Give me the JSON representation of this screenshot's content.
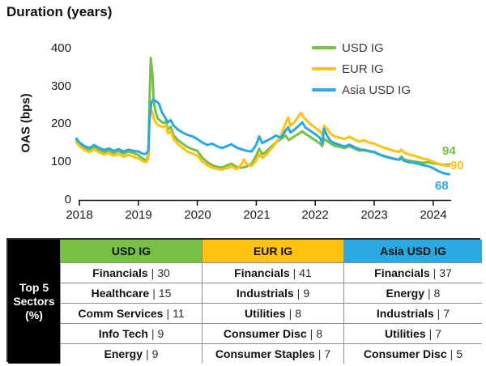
{
  "title": "Duration (years)",
  "chart_data": {
    "type": "line",
    "title": "Duration (years)",
    "ylabel": "OAS (bps)",
    "ylim": [
      0,
      400
    ],
    "y_tick_values": [
      0,
      100,
      200,
      300,
      400
    ],
    "x_tick_values": [
      2018,
      2019,
      2020,
      2021,
      2022,
      2023,
      2024
    ],
    "grid": false,
    "legend_position": "top-right",
    "series": [
      {
        "name": "USD IG",
        "color": "#76C043",
        "end_label": 94,
        "points": [
          [
            2017.95,
            158
          ],
          [
            2018.0,
            148
          ],
          [
            2018.08,
            138
          ],
          [
            2018.17,
            132
          ],
          [
            2018.25,
            141
          ],
          [
            2018.33,
            133
          ],
          [
            2018.42,
            126
          ],
          [
            2018.5,
            131
          ],
          [
            2018.58,
            124
          ],
          [
            2018.67,
            129
          ],
          [
            2018.75,
            122
          ],
          [
            2018.83,
            128
          ],
          [
            2018.92,
            124
          ],
          [
            2019.0,
            119
          ],
          [
            2019.05,
            112
          ],
          [
            2019.1,
            107
          ],
          [
            2019.14,
            105
          ],
          [
            2019.17,
            118
          ],
          [
            2019.19,
            260
          ],
          [
            2019.21,
            375
          ],
          [
            2019.24,
            330
          ],
          [
            2019.26,
            262
          ],
          [
            2019.29,
            235
          ],
          [
            2019.33,
            215
          ],
          [
            2019.42,
            203
          ],
          [
            2019.47,
            207
          ],
          [
            2019.5,
            186
          ],
          [
            2019.55,
            193
          ],
          [
            2019.6,
            170
          ],
          [
            2019.67,
            158
          ],
          [
            2019.75,
            149
          ],
          [
            2019.83,
            140
          ],
          [
            2019.92,
            134
          ],
          [
            2020.0,
            130
          ],
          [
            2020.08,
            112
          ],
          [
            2020.17,
            100
          ],
          [
            2020.25,
            92
          ],
          [
            2020.33,
            88
          ],
          [
            2020.42,
            86
          ],
          [
            2020.5,
            91
          ],
          [
            2020.58,
            96
          ],
          [
            2020.67,
            87
          ],
          [
            2020.75,
            85
          ],
          [
            2020.83,
            88
          ],
          [
            2020.92,
            96
          ],
          [
            2021.0,
            118
          ],
          [
            2021.05,
            136
          ],
          [
            2021.1,
            121
          ],
          [
            2021.17,
            128
          ],
          [
            2021.25,
            140
          ],
          [
            2021.33,
            152
          ],
          [
            2021.42,
            161
          ],
          [
            2021.5,
            170
          ],
          [
            2021.55,
            158
          ],
          [
            2021.63,
            166
          ],
          [
            2021.7,
            173
          ],
          [
            2021.78,
            181
          ],
          [
            2021.83,
            175
          ],
          [
            2021.92,
            166
          ],
          [
            2022.0,
            158
          ],
          [
            2022.08,
            149
          ],
          [
            2022.12,
            142
          ],
          [
            2022.15,
            162
          ],
          [
            2022.2,
            156
          ],
          [
            2022.25,
            150
          ],
          [
            2022.33,
            143
          ],
          [
            2022.42,
            140
          ],
          [
            2022.5,
            137
          ],
          [
            2022.58,
            142
          ],
          [
            2022.67,
            135
          ],
          [
            2022.75,
            130
          ],
          [
            2022.83,
            133
          ],
          [
            2022.92,
            128
          ],
          [
            2023.0,
            126
          ],
          [
            2023.08,
            120
          ],
          [
            2023.17,
            115
          ],
          [
            2023.25,
            112
          ],
          [
            2023.33,
            109
          ],
          [
            2023.42,
            107
          ],
          [
            2023.46,
            115
          ],
          [
            2023.5,
            108
          ],
          [
            2023.58,
            104
          ],
          [
            2023.67,
            102
          ],
          [
            2023.75,
            100
          ],
          [
            2023.83,
            98
          ],
          [
            2023.92,
            100
          ],
          [
            2024.0,
            97
          ],
          [
            2024.08,
            95
          ],
          [
            2024.17,
            93
          ],
          [
            2024.27,
            94
          ]
        ]
      },
      {
        "name": "EUR IG",
        "color": "#FFC20E",
        "end_label": 90,
        "points": [
          [
            2017.95,
            152
          ],
          [
            2018.0,
            143
          ],
          [
            2018.08,
            133
          ],
          [
            2018.17,
            126
          ],
          [
            2018.25,
            134
          ],
          [
            2018.33,
            126
          ],
          [
            2018.42,
            120
          ],
          [
            2018.5,
            124
          ],
          [
            2018.58,
            117
          ],
          [
            2018.67,
            121
          ],
          [
            2018.75,
            114
          ],
          [
            2018.83,
            119
          ],
          [
            2018.92,
            114
          ],
          [
            2019.0,
            110
          ],
          [
            2019.05,
            105
          ],
          [
            2019.1,
            101
          ],
          [
            2019.14,
            100
          ],
          [
            2019.17,
            112
          ],
          [
            2019.19,
            210
          ],
          [
            2019.21,
            240
          ],
          [
            2019.24,
            231
          ],
          [
            2019.26,
            216
          ],
          [
            2019.29,
            206
          ],
          [
            2019.33,
            198
          ],
          [
            2019.42,
            192
          ],
          [
            2019.47,
            197
          ],
          [
            2019.5,
            176
          ],
          [
            2019.55,
            181
          ],
          [
            2019.6,
            160
          ],
          [
            2019.67,
            148
          ],
          [
            2019.75,
            138
          ],
          [
            2019.83,
            128
          ],
          [
            2019.92,
            122
          ],
          [
            2020.0,
            117
          ],
          [
            2020.08,
            102
          ],
          [
            2020.17,
            92
          ],
          [
            2020.25,
            85
          ],
          [
            2020.33,
            82
          ],
          [
            2020.42,
            80
          ],
          [
            2020.5,
            84
          ],
          [
            2020.58,
            88
          ],
          [
            2020.67,
            81
          ],
          [
            2020.75,
            94
          ],
          [
            2020.79,
            107
          ],
          [
            2020.83,
            96
          ],
          [
            2020.92,
            90
          ],
          [
            2021.0,
            104
          ],
          [
            2021.05,
            121
          ],
          [
            2021.1,
            111
          ],
          [
            2021.17,
            120
          ],
          [
            2021.25,
            134
          ],
          [
            2021.33,
            150
          ],
          [
            2021.42,
            170
          ],
          [
            2021.5,
            204
          ],
          [
            2021.54,
            218
          ],
          [
            2021.58,
            196
          ],
          [
            2021.65,
            206
          ],
          [
            2021.72,
            222
          ],
          [
            2021.76,
            230
          ],
          [
            2021.83,
            214
          ],
          [
            2021.92,
            200
          ],
          [
            2022.0,
            191
          ],
          [
            2022.08,
            181
          ],
          [
            2022.12,
            172
          ],
          [
            2022.15,
            196
          ],
          [
            2022.2,
            188
          ],
          [
            2022.25,
            176
          ],
          [
            2022.33,
            168
          ],
          [
            2022.42,
            164
          ],
          [
            2022.5,
            161
          ],
          [
            2022.58,
            167
          ],
          [
            2022.67,
            159
          ],
          [
            2022.75,
            154
          ],
          [
            2022.83,
            158
          ],
          [
            2022.92,
            151
          ],
          [
            2023.0,
            149
          ],
          [
            2023.08,
            143
          ],
          [
            2023.17,
            138
          ],
          [
            2023.25,
            134
          ],
          [
            2023.33,
            130
          ],
          [
            2023.42,
            127
          ],
          [
            2023.46,
            133
          ],
          [
            2023.5,
            126
          ],
          [
            2023.58,
            121
          ],
          [
            2023.67,
            117
          ],
          [
            2023.75,
            113
          ],
          [
            2023.83,
            109
          ],
          [
            2023.92,
            106
          ],
          [
            2024.0,
            101
          ],
          [
            2024.08,
            96
          ],
          [
            2024.17,
            92
          ],
          [
            2024.27,
            90
          ]
        ]
      },
      {
        "name": "Asia USD IG",
        "color": "#29A9E1",
        "end_label": 68,
        "points": [
          [
            2017.95,
            162
          ],
          [
            2018.0,
            152
          ],
          [
            2018.08,
            143
          ],
          [
            2018.17,
            137
          ],
          [
            2018.25,
            145
          ],
          [
            2018.33,
            138
          ],
          [
            2018.42,
            132
          ],
          [
            2018.5,
            136
          ],
          [
            2018.58,
            130
          ],
          [
            2018.67,
            134
          ],
          [
            2018.75,
            128
          ],
          [
            2018.83,
            133
          ],
          [
            2018.92,
            130
          ],
          [
            2019.0,
            128
          ],
          [
            2019.05,
            124
          ],
          [
            2019.1,
            121
          ],
          [
            2019.14,
            123
          ],
          [
            2019.17,
            132
          ],
          [
            2019.19,
            215
          ],
          [
            2019.22,
            256
          ],
          [
            2019.25,
            265
          ],
          [
            2019.3,
            261
          ],
          [
            2019.35,
            254
          ],
          [
            2019.4,
            231
          ],
          [
            2019.45,
            219
          ],
          [
            2019.5,
            205
          ],
          [
            2019.55,
            211
          ],
          [
            2019.6,
            196
          ],
          [
            2019.67,
            186
          ],
          [
            2019.75,
            178
          ],
          [
            2019.83,
            172
          ],
          [
            2019.92,
            168
          ],
          [
            2020.0,
            161
          ],
          [
            2020.08,
            152
          ],
          [
            2020.17,
            145
          ],
          [
            2020.25,
            149
          ],
          [
            2020.33,
            142
          ],
          [
            2020.42,
            137
          ],
          [
            2020.5,
            142
          ],
          [
            2020.58,
            147
          ],
          [
            2020.67,
            138
          ],
          [
            2020.75,
            134
          ],
          [
            2020.83,
            130
          ],
          [
            2020.92,
            128
          ],
          [
            2021.0,
            146
          ],
          [
            2021.05,
            168
          ],
          [
            2021.1,
            150
          ],
          [
            2021.17,
            156
          ],
          [
            2021.25,
            162
          ],
          [
            2021.33,
            170
          ],
          [
            2021.42,
            164
          ],
          [
            2021.5,
            184
          ],
          [
            2021.54,
            192
          ],
          [
            2021.58,
            178
          ],
          [
            2021.65,
            186
          ],
          [
            2021.72,
            196
          ],
          [
            2021.78,
            205
          ],
          [
            2021.83,
            192
          ],
          [
            2021.92,
            182
          ],
          [
            2022.0,
            174
          ],
          [
            2022.08,
            164
          ],
          [
            2022.12,
            150
          ],
          [
            2022.15,
            188
          ],
          [
            2022.2,
            170
          ],
          [
            2022.25,
            157
          ],
          [
            2022.33,
            150
          ],
          [
            2022.42,
            145
          ],
          [
            2022.5,
            141
          ],
          [
            2022.58,
            146
          ],
          [
            2022.67,
            139
          ],
          [
            2022.75,
            134
          ],
          [
            2022.83,
            131
          ],
          [
            2022.92,
            129
          ],
          [
            2023.0,
            127
          ],
          [
            2023.08,
            121
          ],
          [
            2023.17,
            116
          ],
          [
            2023.25,
            112
          ],
          [
            2023.33,
            109
          ],
          [
            2023.42,
            106
          ],
          [
            2023.46,
            111
          ],
          [
            2023.5,
            104
          ],
          [
            2023.58,
            100
          ],
          [
            2023.67,
            98
          ],
          [
            2023.75,
            96
          ],
          [
            2023.83,
            92
          ],
          [
            2023.92,
            89
          ],
          [
            2024.0,
            84
          ],
          [
            2024.08,
            77
          ],
          [
            2024.17,
            71
          ],
          [
            2024.27,
            68
          ]
        ]
      }
    ]
  },
  "table": {
    "corner": {
      "line1": "Top 5",
      "line2": "Sectors",
      "line3": "(%)"
    },
    "separator": "|",
    "columns": [
      {
        "header": "USD IG",
        "color": "#76C043",
        "rows": [
          {
            "sector": "Financials",
            "value": 30
          },
          {
            "sector": "Healthcare",
            "value": 15
          },
          {
            "sector": "Comm Services",
            "value": 11
          },
          {
            "sector": "Info Tech",
            "value": 9
          },
          {
            "sector": "Energy",
            "value": 9
          }
        ]
      },
      {
        "header": "EUR IG",
        "color": "#FFC20E",
        "rows": [
          {
            "sector": "Financials",
            "value": 41
          },
          {
            "sector": "Industrials",
            "value": 9
          },
          {
            "sector": "Utilities",
            "value": 8
          },
          {
            "sector": "Consumer Disc",
            "value": 8
          },
          {
            "sector": "Consumer Staples",
            "value": 7
          }
        ]
      },
      {
        "header": "Asia USD IG",
        "color": "#29A9E1",
        "rows": [
          {
            "sector": "Financials",
            "value": 37
          },
          {
            "sector": "Energy",
            "value": 8
          },
          {
            "sector": "Industrials",
            "value": 7
          },
          {
            "sector": "Utilities",
            "value": 7
          },
          {
            "sector": "Consumer Disc",
            "value": 5
          }
        ]
      }
    ]
  }
}
